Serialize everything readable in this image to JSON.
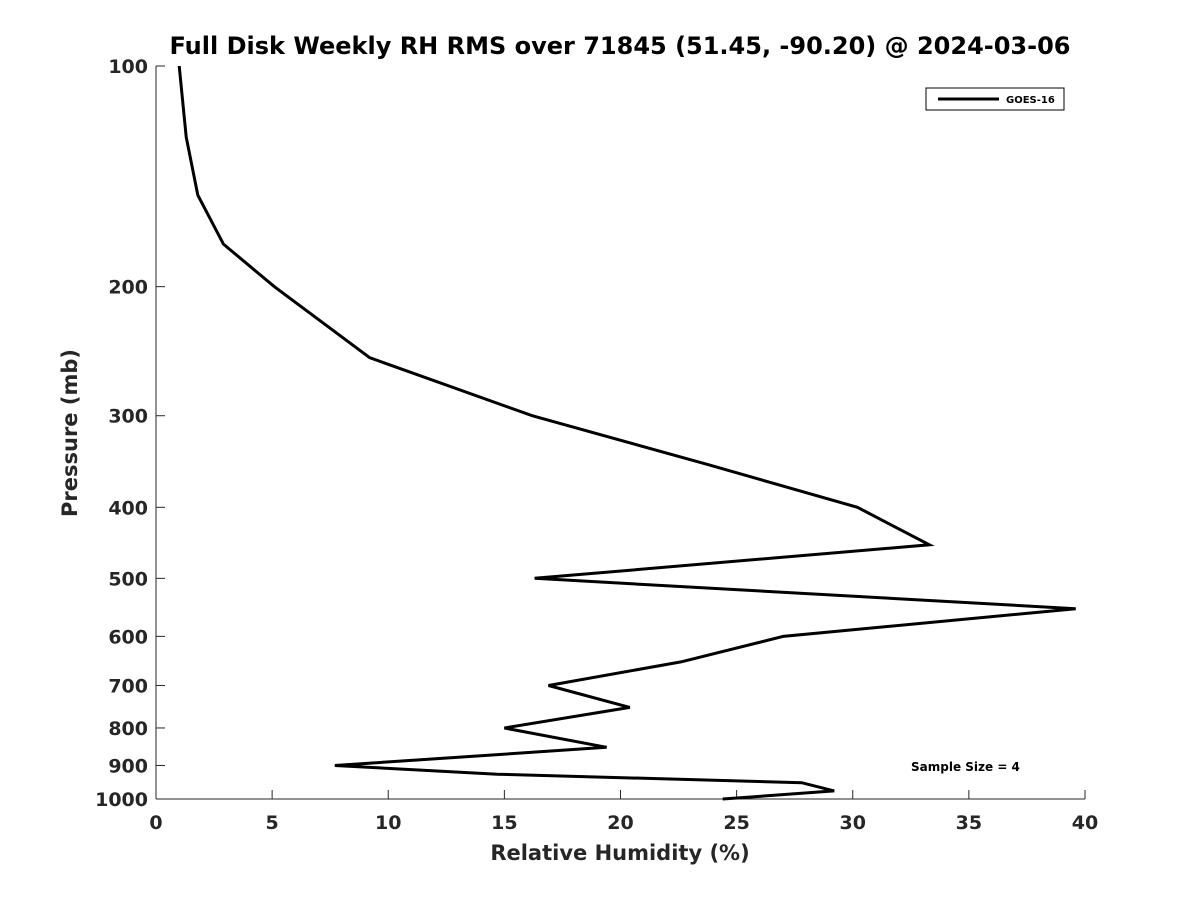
{
  "chart_data": {
    "type": "line",
    "title": "Full Disk Weekly RH RMS over 71845 (51.45, -90.20) @ 2024-03-06",
    "xlabel": "Relative Humidity (%)",
    "ylabel": "Pressure (mb)",
    "xlim": [
      0,
      40
    ],
    "ylim": [
      1000,
      100
    ],
    "y_scale": "log",
    "y_reversed": true,
    "grid": false,
    "x_ticks": [
      0,
      5,
      10,
      15,
      20,
      25,
      30,
      35,
      40
    ],
    "y_ticks": [
      100,
      200,
      300,
      400,
      500,
      600,
      700,
      800,
      900,
      1000
    ],
    "legend": {
      "position": "top-right",
      "entries": [
        "GOES-16"
      ]
    },
    "annotation": "Sample Size = 4",
    "series": [
      {
        "name": "GOES-16",
        "color": "#000000",
        "points": [
          {
            "x": 1.0,
            "y": 100
          },
          {
            "x": 1.3,
            "y": 125
          },
          {
            "x": 1.8,
            "y": 150
          },
          {
            "x": 2.9,
            "y": 175
          },
          {
            "x": 5.1,
            "y": 200
          },
          {
            "x": 9.2,
            "y": 250
          },
          {
            "x": 16.2,
            "y": 300
          },
          {
            "x": 23.8,
            "y": 350
          },
          {
            "x": 30.2,
            "y": 400
          },
          {
            "x": 33.3,
            "y": 450
          },
          {
            "x": 16.3,
            "y": 500
          },
          {
            "x": 39.6,
            "y": 550
          },
          {
            "x": 27.0,
            "y": 600
          },
          {
            "x": 22.6,
            "y": 650
          },
          {
            "x": 16.9,
            "y": 700
          },
          {
            "x": 20.4,
            "y": 750
          },
          {
            "x": 15.0,
            "y": 800
          },
          {
            "x": 19.4,
            "y": 850
          },
          {
            "x": 7.7,
            "y": 900
          },
          {
            "x": 14.7,
            "y": 925
          },
          {
            "x": 27.8,
            "y": 950
          },
          {
            "x": 29.2,
            "y": 975
          },
          {
            "x": 24.4,
            "y": 1000
          }
        ]
      }
    ]
  }
}
